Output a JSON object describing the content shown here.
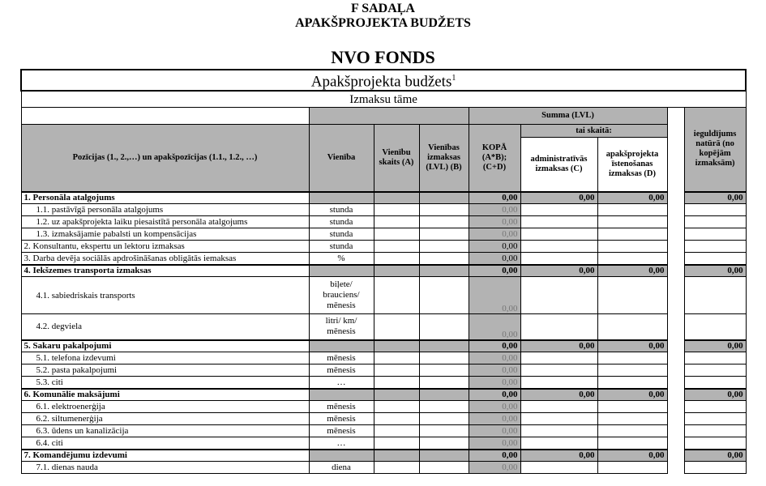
{
  "header": {
    "section": "F SADAĻA",
    "subtitle": "APAKŠPROJEKTA BUDŽETS",
    "organization": "NVO FONDS"
  },
  "table": {
    "title": "Apakšprojekta budžets",
    "title_sup": "1",
    "subtitle": "Izmaksu tāme",
    "columns": {
      "positions": "Pozīcijas (1., 2.,…) un apakšpozīcijas (1.1., 1.2., …)",
      "unit": "Vienība",
      "count": "Vienību skaits (A)",
      "unit_cost": "Vienības izmaksas (LVL) (B)",
      "sum_group": "Summa (LVL)",
      "incl": "tai skaitā:",
      "total": "KOPĀ (A*B); (C+D)",
      "admin": "administratīvās izmaksas (C)",
      "impl": "apakšprojekta īstenošanas izmaksas (D)",
      "inkind": "ieguldījums natūrā (no kopējām izmaksām)"
    },
    "rows": [
      {
        "kind": "section",
        "label": "1. Personāla atalgojums",
        "unit": "",
        "total": "0,00",
        "admin": "0,00",
        "impl": "0,00",
        "inkind": "0,00"
      },
      {
        "kind": "sub",
        "label": "1.1. pastāvīgā personāla atalgojums",
        "unit": "stunda",
        "total": "0,00"
      },
      {
        "kind": "sub",
        "label": "1.2. uz apakšprojekta laiku piesaistītā personāla atalgojums",
        "unit": "stunda",
        "total": "0,00"
      },
      {
        "kind": "sub",
        "label": "1.3. izmaksājamie pabalsti un kompensācijas",
        "unit": "stunda",
        "total": "0,00"
      },
      {
        "kind": "plain",
        "label": "2. Konsultantu, ekspertu un lektoru izmaksas",
        "unit": "stunda",
        "total": "0,00"
      },
      {
        "kind": "plain",
        "label": "3. Darba devēja sociālās apdrošināšanas obligātās iemaksas",
        "unit": "%",
        "total": "0,00"
      },
      {
        "kind": "section",
        "label": "4. Iekšzemes transporta izmaksas",
        "unit": "",
        "total": "0,00",
        "admin": "0,00",
        "impl": "0,00",
        "inkind": "0,00"
      },
      {
        "kind": "sub",
        "tall": 3,
        "label": "4.1. sabiedriskais transports",
        "unit": "biļete/ brauciens/ mēnesis",
        "total": "0,00"
      },
      {
        "kind": "sub",
        "tall": 2,
        "label": "4.2. degviela",
        "unit": "litri/ km/ mēnesis",
        "total": "0,00"
      },
      {
        "kind": "section",
        "label": "5. Sakaru pakalpojumi",
        "unit": "",
        "total": "0,00",
        "admin": "0,00",
        "impl": "0,00",
        "inkind": "0,00"
      },
      {
        "kind": "sub",
        "label": "5.1. telefona izdevumi",
        "unit": "mēnesis",
        "total": "0,00"
      },
      {
        "kind": "sub",
        "label": "5.2. pasta pakalpojumi",
        "unit": "mēnesis",
        "total": "0,00"
      },
      {
        "kind": "sub",
        "label": "5.3. citi",
        "unit": "…",
        "total": "0,00"
      },
      {
        "kind": "section",
        "label": "6. Komunālie maksājumi",
        "unit": "",
        "total": "0,00",
        "admin": "0,00",
        "impl": "0,00",
        "inkind": "0,00"
      },
      {
        "kind": "sub",
        "label": "6.1. elektroenerģija",
        "unit": "mēnesis",
        "total": "0,00"
      },
      {
        "kind": "sub",
        "label": "6.2. siltumenerģija",
        "unit": "mēnesis",
        "total": "0,00"
      },
      {
        "kind": "sub",
        "label": "6.3. ūdens un kanalizācija",
        "unit": "mēnesis",
        "total": "0,00"
      },
      {
        "kind": "sub",
        "label": "6.4. citi",
        "unit": "…",
        "total": "0,00"
      },
      {
        "kind": "section",
        "label": "7. Komandējumu izdevumi",
        "unit": "",
        "total": "0,00",
        "admin": "0,00",
        "impl": "0,00",
        "inkind": "0,00"
      },
      {
        "kind": "sub",
        "label": "7.1. dienas nauda",
        "unit": "diena",
        "total": "0,00"
      }
    ]
  }
}
